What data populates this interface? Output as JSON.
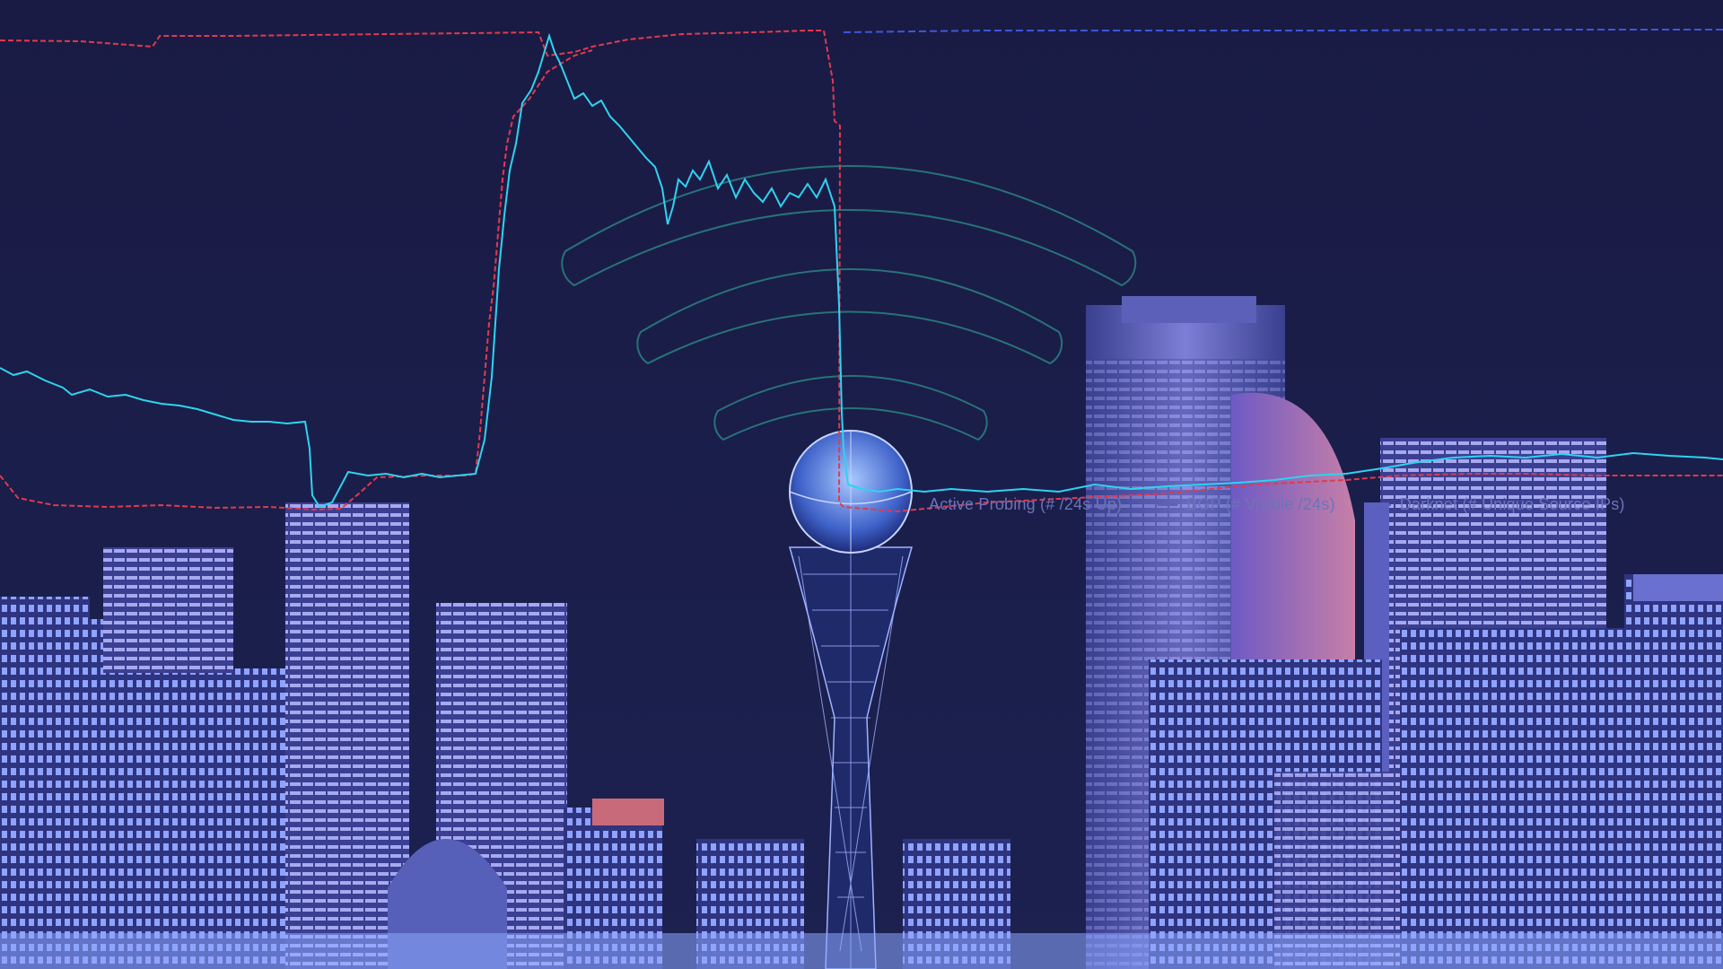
{
  "legend": {
    "active_probing": "Active Probing (# /24s Up)",
    "bgp": "BGP (# Visible /24s)",
    "darknet": "Darknet (# Unique Source IPs)"
  },
  "colors": {
    "background": "#1a1d45",
    "active_probing": "#2fd3ef",
    "bgp": "#e03a4e",
    "darknet": "#3f57d8",
    "wifi": "#2d8f8a",
    "legend_text": "#6c73b8"
  },
  "icons": [
    "wifi-icon",
    "tower-icon"
  ]
}
